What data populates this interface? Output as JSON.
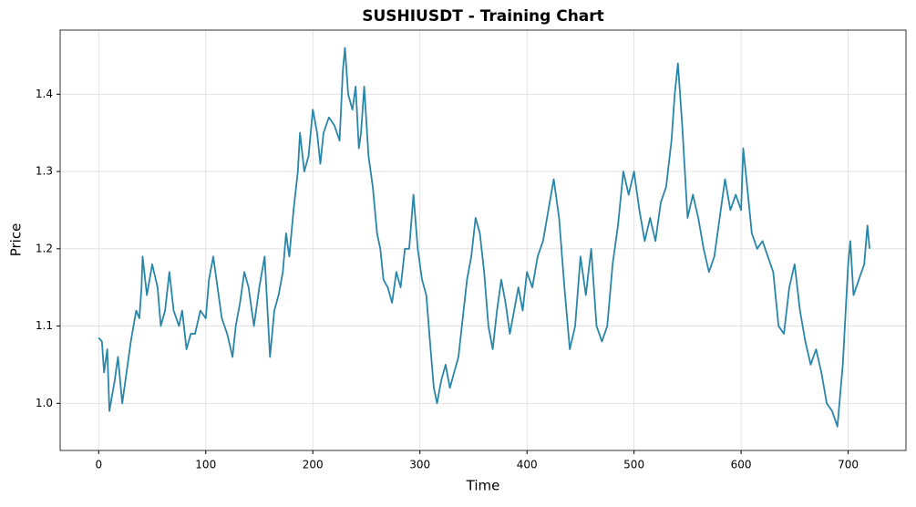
{
  "chart_data": {
    "type": "line",
    "title": "SUSHIUSDT - Training Chart",
    "xlabel": "Time",
    "ylabel": "Price",
    "x": [
      0,
      3,
      5,
      8,
      10,
      15,
      18,
      22,
      25,
      30,
      35,
      38,
      40,
      41,
      45,
      50,
      55,
      58,
      62,
      66,
      70,
      75,
      78,
      82,
      86,
      90,
      95,
      100,
      103,
      107,
      110,
      115,
      120,
      125,
      128,
      132,
      136,
      140,
      145,
      150,
      155,
      160,
      164,
      168,
      172,
      175,
      178,
      182,
      186,
      188,
      192,
      196,
      200,
      204,
      207,
      210,
      215,
      220,
      225,
      228,
      230,
      233,
      237,
      240,
      243,
      245,
      248,
      252,
      256,
      260,
      263,
      266,
      270,
      274,
      278,
      282,
      286,
      290,
      294,
      298,
      302,
      306,
      310,
      313,
      316,
      320,
      324,
      328,
      332,
      336,
      340,
      344,
      348,
      352,
      356,
      360,
      364,
      368,
      372,
      376,
      380,
      384,
      388,
      392,
      396,
      400,
      405,
      410,
      415,
      420,
      425,
      430,
      435,
      440,
      445,
      450,
      455,
      460,
      465,
      470,
      475,
      480,
      485,
      490,
      495,
      500,
      505,
      510,
      515,
      520,
      525,
      530,
      535,
      538,
      541,
      545,
      550,
      555,
      560,
      565,
      570,
      575,
      580,
      585,
      590,
      595,
      600,
      602,
      605,
      610,
      615,
      620,
      625,
      630,
      635,
      640,
      645,
      650,
      655,
      660,
      665,
      670,
      675,
      680,
      685,
      690,
      695,
      700,
      702,
      705,
      710,
      715,
      718,
      720
    ],
    "values": [
      1.085,
      1.08,
      1.04,
      1.07,
      0.99,
      1.03,
      1.06,
      1.0,
      1.03,
      1.08,
      1.12,
      1.11,
      1.15,
      1.19,
      1.14,
      1.18,
      1.15,
      1.1,
      1.12,
      1.17,
      1.12,
      1.1,
      1.12,
      1.07,
      1.09,
      1.09,
      1.12,
      1.11,
      1.16,
      1.19,
      1.16,
      1.11,
      1.09,
      1.06,
      1.1,
      1.13,
      1.17,
      1.15,
      1.1,
      1.15,
      1.19,
      1.06,
      1.12,
      1.14,
      1.17,
      1.22,
      1.19,
      1.25,
      1.3,
      1.35,
      1.3,
      1.32,
      1.38,
      1.35,
      1.31,
      1.35,
      1.37,
      1.36,
      1.34,
      1.43,
      1.46,
      1.4,
      1.38,
      1.41,
      1.33,
      1.35,
      1.41,
      1.32,
      1.28,
      1.22,
      1.2,
      1.16,
      1.15,
      1.13,
      1.17,
      1.15,
      1.2,
      1.2,
      1.27,
      1.2,
      1.16,
      1.14,
      1.07,
      1.02,
      1.0,
      1.03,
      1.05,
      1.02,
      1.04,
      1.06,
      1.11,
      1.16,
      1.19,
      1.24,
      1.22,
      1.17,
      1.1,
      1.07,
      1.12,
      1.16,
      1.13,
      1.09,
      1.12,
      1.15,
      1.12,
      1.17,
      1.15,
      1.19,
      1.21,
      1.25,
      1.29,
      1.24,
      1.15,
      1.07,
      1.1,
      1.19,
      1.14,
      1.2,
      1.1,
      1.08,
      1.1,
      1.18,
      1.23,
      1.3,
      1.27,
      1.3,
      1.25,
      1.21,
      1.24,
      1.21,
      1.26,
      1.28,
      1.34,
      1.4,
      1.44,
      1.36,
      1.24,
      1.27,
      1.24,
      1.2,
      1.17,
      1.19,
      1.24,
      1.29,
      1.25,
      1.27,
      1.25,
      1.33,
      1.29,
      1.22,
      1.2,
      1.21,
      1.19,
      1.17,
      1.1,
      1.09,
      1.15,
      1.18,
      1.12,
      1.08,
      1.05,
      1.07,
      1.04,
      1.0,
      0.99,
      0.97,
      1.05,
      1.18,
      1.21,
      1.14,
      1.16,
      1.18,
      1.23,
      1.2
    ],
    "color": "#2a86a8",
    "xlim": [
      -36,
      754
    ],
    "xticks": [
      0,
      100,
      200,
      300,
      400,
      500,
      600,
      700
    ],
    "ylim": [
      0.939,
      1.483
    ],
    "yticks": [
      {
        "value": 1,
        "label": "1.0"
      },
      1.1,
      1.2,
      1.3,
      1.4
    ],
    "grid": true
  }
}
